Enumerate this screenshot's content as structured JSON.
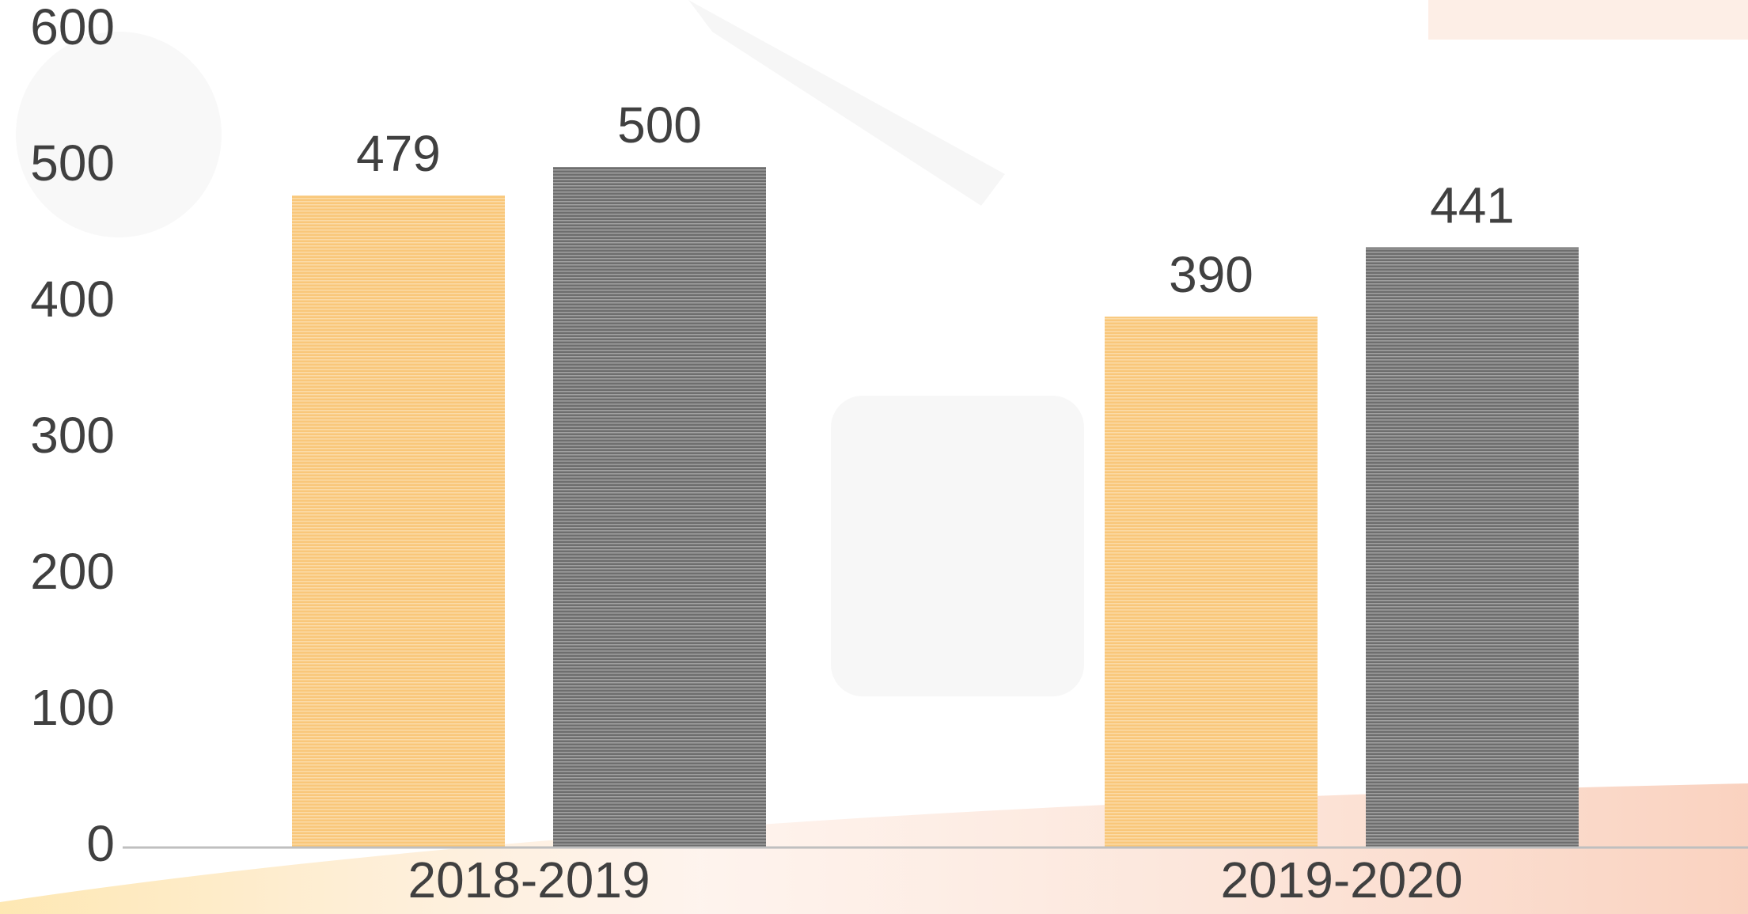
{
  "chart_data": {
    "type": "bar",
    "categories": [
      "2018-2019",
      "2019-2020"
    ],
    "series": [
      {
        "color": "#f9c77a",
        "values": [
          479,
          390
        ]
      },
      {
        "color": "#6e6e6e",
        "values": [
          500,
          441
        ]
      }
    ],
    "ylim": [
      0,
      600
    ],
    "yticks": [
      0,
      100,
      200,
      300,
      400,
      500,
      600
    ],
    "data_labels": true
  }
}
